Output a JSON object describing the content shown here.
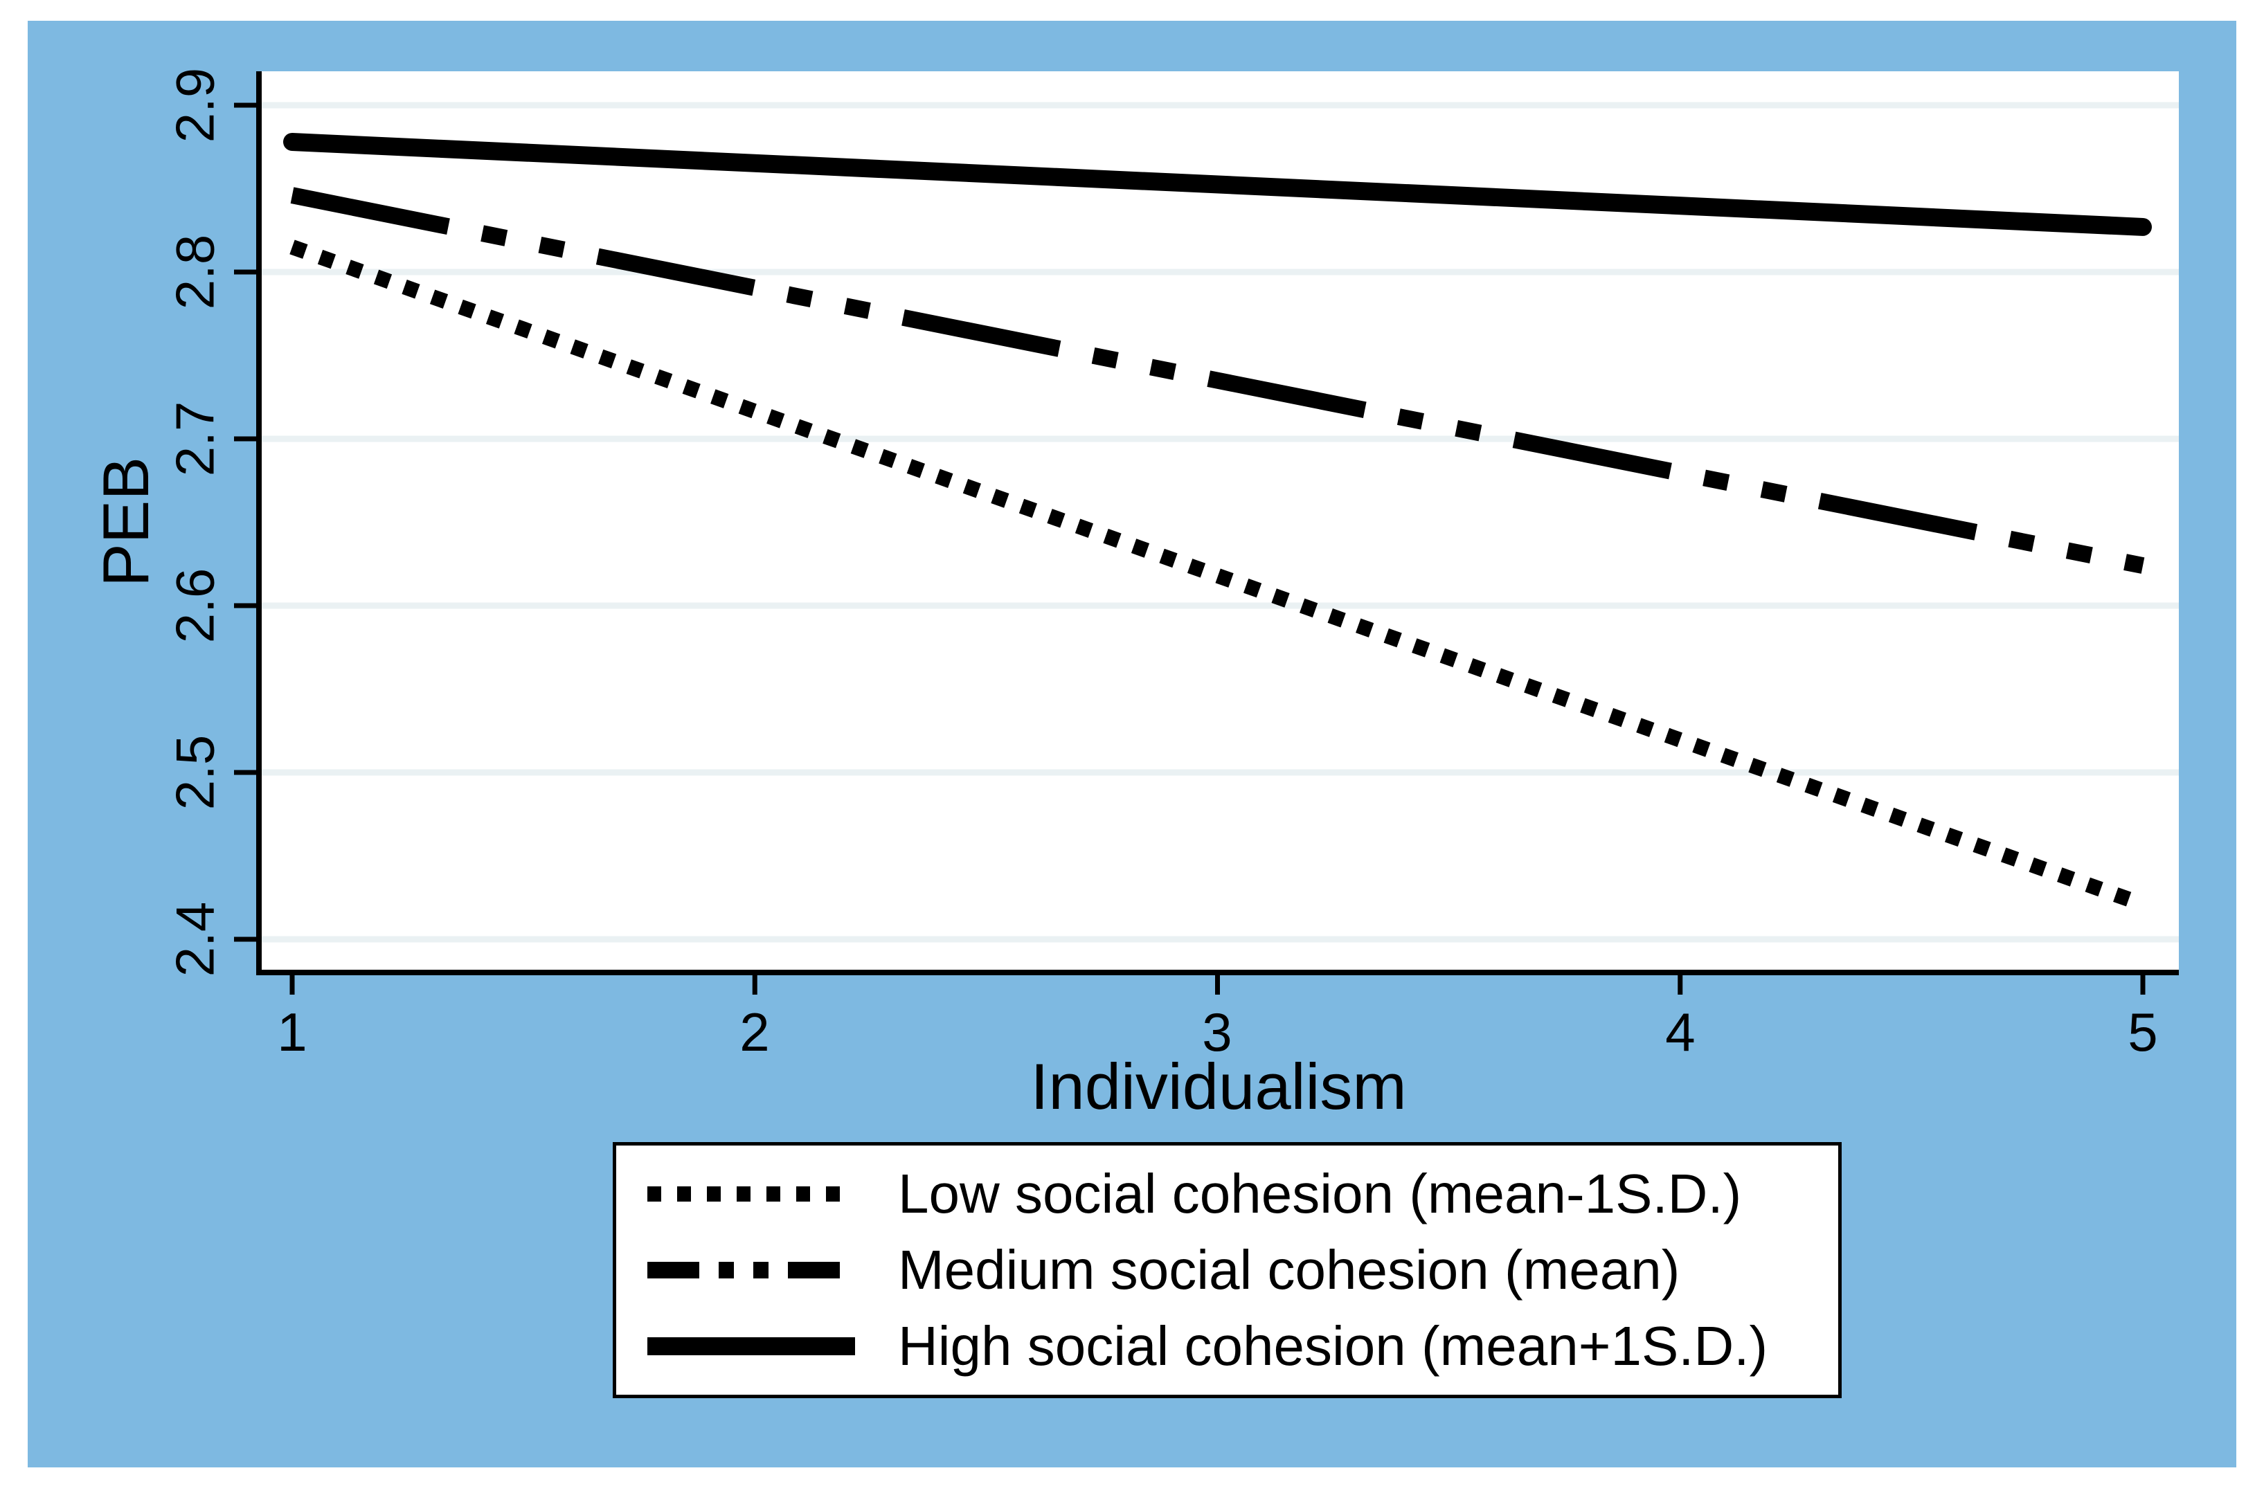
{
  "figure": {
    "kind": "stata-style interaction plot",
    "page_background": "#ffffff",
    "panel_background": "#7eb9e1",
    "plot_background": "#ffffff",
    "gridline_color": "#eaf1f3",
    "axis_color": "#000000",
    "line_color": "#000000"
  },
  "chart_data": {
    "type": "line",
    "title": "",
    "xlabel": "Individualism",
    "ylabel": "PEB",
    "x_ticks": [
      1,
      2,
      3,
      4,
      5
    ],
    "x_tick_labels": [
      "1",
      "2",
      "3",
      "4",
      "5"
    ],
    "y_ticks": [
      2.9,
      2.8,
      2.7,
      2.6,
      2.5,
      2.4
    ],
    "y_tick_labels": [
      "2.9",
      "2.8",
      "2.7",
      "2.6",
      "2.5",
      "2.4"
    ],
    "xlim": [
      0.93,
      5.08
    ],
    "ylim": [
      2.38,
      2.92
    ],
    "grid": "horizontal-only",
    "legend_position": "below-axis-center",
    "series": [
      {
        "name": "Low social cohesion (mean-1S.D.)",
        "style": "dotted",
        "x": [
          1,
          5
        ],
        "y": [
          2.815,
          2.421
        ]
      },
      {
        "name": "Medium social cohesion (mean)",
        "style": "dash-dot-dot",
        "x": [
          1,
          5
        ],
        "y": [
          2.846,
          2.624
        ]
      },
      {
        "name": "High social cohesion (mean+1S.D.)",
        "style": "solid",
        "x": [
          1,
          5
        ],
        "y": [
          2.878,
          2.827
        ]
      }
    ]
  }
}
